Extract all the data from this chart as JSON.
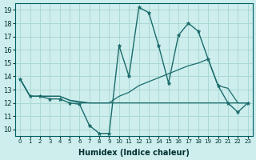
{
  "xlabel": "Humidex (Indice chaleur)",
  "background_color": "#cdeeed",
  "grid_color": "#aad8d3",
  "line_color": "#1a6b6b",
  "xlim": [
    -0.5,
    23.5
  ],
  "ylim": [
    9.5,
    19.5
  ],
  "xticks": [
    0,
    1,
    2,
    3,
    4,
    5,
    6,
    7,
    8,
    9,
    10,
    11,
    12,
    13,
    14,
    15,
    16,
    17,
    18,
    19,
    20,
    21,
    22,
    23
  ],
  "yticks": [
    10,
    11,
    12,
    13,
    14,
    15,
    16,
    17,
    18,
    19
  ],
  "line1_y": [
    13.8,
    12.5,
    12.5,
    12.3,
    12.3,
    12.0,
    11.9,
    10.3,
    9.7,
    9.7,
    16.3,
    14.0,
    19.2,
    18.8,
    16.3,
    13.5,
    17.1,
    18.0,
    17.4,
    15.3,
    13.3,
    12.0,
    11.3,
    12.0
  ],
  "line2_y": [
    13.8,
    12.5,
    12.5,
    12.5,
    12.5,
    12.2,
    12.0,
    12.0,
    12.0,
    12.0,
    12.0,
    12.0,
    12.0,
    12.0,
    12.0,
    12.0,
    12.0,
    12.0,
    12.0,
    12.0,
    12.0,
    12.0,
    12.0,
    12.0
  ],
  "line3_y": [
    13.8,
    12.5,
    12.5,
    12.5,
    12.5,
    12.2,
    12.1,
    12.0,
    12.0,
    12.0,
    12.5,
    12.8,
    13.3,
    13.6,
    13.9,
    14.2,
    14.5,
    14.8,
    15.0,
    15.3,
    13.3,
    13.1,
    12.0,
    12.0
  ]
}
